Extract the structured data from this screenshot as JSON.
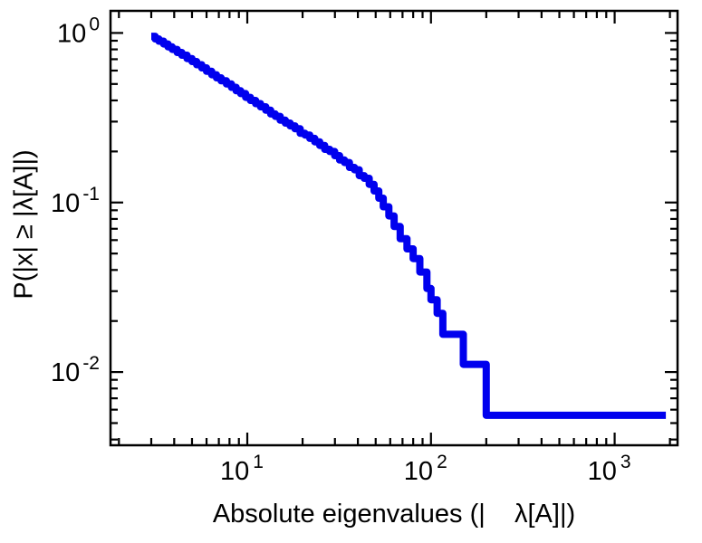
{
  "chart_data": {
    "type": "line",
    "subtype": "step-ccdf-loglog",
    "title": "",
    "xlabel": "Absolute eigenvalues (|    λ[A]|)",
    "ylabel": "P(|x| ≥ |λ[A]|)",
    "x_scale": "log",
    "y_scale": "log",
    "xlim": [
      1.8,
      2200
    ],
    "ylim": [
      0.0037,
      1.35
    ],
    "x_major_ticks": [
      10,
      100,
      1000
    ],
    "y_major_ticks": [
      1,
      0.1,
      0.01
    ],
    "grid": "off",
    "legend": "none",
    "line_color": "#0000ee",
    "line_width": 8,
    "frame_color": "#000000",
    "points": [
      [
        3.0,
        0.956
      ],
      [
        3.15,
        0.922
      ],
      [
        3.3,
        0.894
      ],
      [
        3.5,
        0.861
      ],
      [
        3.7,
        0.828
      ],
      [
        3.9,
        0.8
      ],
      [
        4.15,
        0.767
      ],
      [
        4.4,
        0.739
      ],
      [
        4.7,
        0.706
      ],
      [
        5.0,
        0.678
      ],
      [
        5.3,
        0.65
      ],
      [
        5.65,
        0.622
      ],
      [
        6.0,
        0.594
      ],
      [
        6.4,
        0.567
      ],
      [
        6.8,
        0.544
      ],
      [
        7.2,
        0.522
      ],
      [
        7.7,
        0.5
      ],
      [
        8.2,
        0.478
      ],
      [
        8.7,
        0.456
      ],
      [
        9.2,
        0.439
      ],
      [
        9.8,
        0.417
      ],
      [
        10.4,
        0.4
      ],
      [
        11.1,
        0.383
      ],
      [
        11.8,
        0.367
      ],
      [
        12.6,
        0.35
      ],
      [
        13.4,
        0.333
      ],
      [
        14.2,
        0.322
      ],
      [
        15.1,
        0.306
      ],
      [
        16.1,
        0.294
      ],
      [
        17.1,
        0.283
      ],
      [
        18.2,
        0.272
      ],
      [
        19.4,
        0.256
      ],
      [
        20.6,
        0.25
      ],
      [
        21.9,
        0.239
      ],
      [
        23.3,
        0.228
      ],
      [
        24.8,
        0.217
      ],
      [
        26.4,
        0.206
      ],
      [
        28.1,
        0.2
      ],
      [
        29.9,
        0.189
      ],
      [
        31.8,
        0.178
      ],
      [
        33.8,
        0.172
      ],
      [
        36.0,
        0.161
      ],
      [
        38.3,
        0.156
      ],
      [
        40.7,
        0.144
      ],
      [
        43.3,
        0.139
      ],
      [
        46.1,
        0.128
      ],
      [
        49.0,
        0.117
      ],
      [
        52,
        0.106
      ],
      [
        55,
        0.0944
      ],
      [
        59,
        0.0833
      ],
      [
        63,
        0.0722
      ],
      [
        68,
        0.0611
      ],
      [
        74,
        0.0533
      ],
      [
        80,
        0.0467
      ],
      [
        87,
        0.0389
      ],
      [
        95,
        0.0311
      ],
      [
        100,
        0.0267
      ],
      [
        108,
        0.0222
      ],
      [
        116,
        0.0167
      ],
      [
        150,
        0.0111
      ],
      [
        200,
        0.00556
      ],
      [
        1900,
        0.00556
      ]
    ]
  }
}
